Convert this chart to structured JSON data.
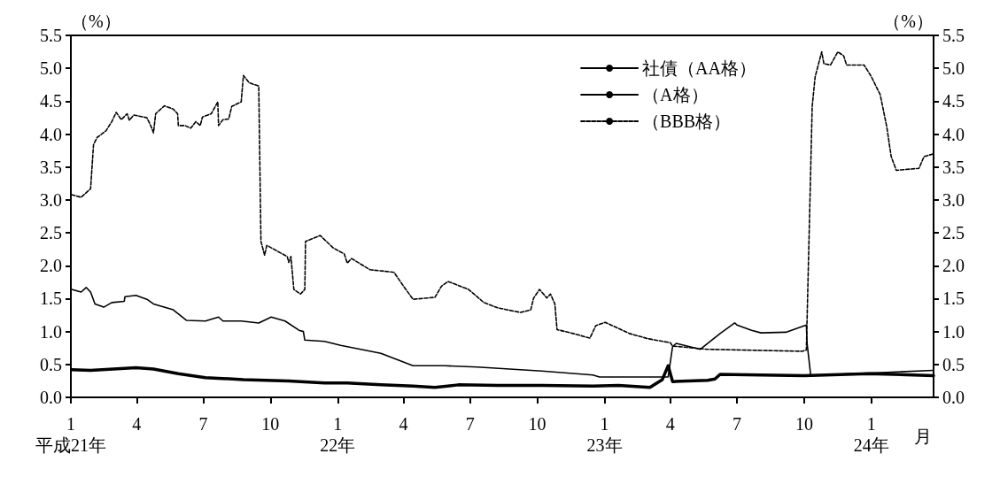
{
  "chart_data": {
    "type": "line",
    "ylabel": "（%）",
    "y2label": "（%）",
    "xlabel": "月",
    "xlim": [
      "2009-01-01",
      "2012-03-26"
    ],
    "xticks": [
      {
        "value": "2009-01-01",
        "label": "1\n平成21年"
      },
      {
        "value": "2009-04-01",
        "label": "4"
      },
      {
        "value": "2009-07-01",
        "label": "7"
      },
      {
        "value": "2009-10-01",
        "label": "10"
      },
      {
        "value": "2010-01-01",
        "label": "1\n22年"
      },
      {
        "value": "2010-04-01",
        "label": "4"
      },
      {
        "value": "2010-07-01",
        "label": "7"
      },
      {
        "value": "2010-10-01",
        "label": "10"
      },
      {
        "value": "2011-01-01",
        "label": "1\n23年"
      },
      {
        "value": "2011-04-01",
        "label": "4"
      },
      {
        "value": "2011-07-01",
        "label": "7"
      },
      {
        "value": "2011-10-01",
        "label": "10"
      },
      {
        "value": "2012-01-01",
        "label": "1\n24年"
      }
    ],
    "ylim": [
      0,
      5.5
    ],
    "yticks": [
      {
        "value": 0,
        "label": "0.0"
      },
      {
        "value": 0.5,
        "label": "0.5"
      },
      {
        "value": 1,
        "label": "1.0"
      },
      {
        "value": 1.5,
        "label": "1.5"
      },
      {
        "value": 2,
        "label": "2.0"
      },
      {
        "value": 2.5,
        "label": "2.5"
      },
      {
        "value": 3,
        "label": "3.0"
      },
      {
        "value": 3.5,
        "label": "3.5"
      },
      {
        "value": 4,
        "label": "4.0"
      },
      {
        "value": 4.5,
        "label": "4.5"
      },
      {
        "value": 5,
        "label": "5.0"
      },
      {
        "value": 5.5,
        "label": "5.5"
      }
    ],
    "y2lim": [
      0,
      5.5
    ],
    "y2ticks": [
      {
        "value": 0,
        "label": "0.0"
      },
      {
        "value": 0.5,
        "label": "0.5"
      },
      {
        "value": 1,
        "label": "1.0"
      },
      {
        "value": 1.5,
        "label": "1.5"
      },
      {
        "value": 2,
        "label": "2.0"
      },
      {
        "value": 2.5,
        "label": "2.5"
      },
      {
        "value": 3,
        "label": "3.0"
      },
      {
        "value": 3.5,
        "label": "3.5"
      },
      {
        "value": 4,
        "label": "4.0"
      },
      {
        "value": 4.5,
        "label": "4.5"
      },
      {
        "value": 5,
        "label": "5.0"
      },
      {
        "value": 5.5,
        "label": "5.5"
      }
    ],
    "grid": false,
    "legend": "top right",
    "marker": "none",
    "series": [
      {
        "name": "社債（AA格）",
        "color": "#000000",
        "line_style": "solid",
        "x": [
          "2009-01-02",
          "2009-01-28",
          "2009-03-31",
          "2009-04-24",
          "2009-05-28",
          "2009-07-04",
          "2009-08-25",
          "2009-10-26",
          "2009-12-14",
          "2010-01-14",
          "2010-03-01",
          "2010-04-14",
          "2010-05-14",
          "2010-06-15",
          "2010-08-08",
          "2010-10-07",
          "2010-12-16",
          "2011-01-20",
          "2011-03-04",
          "2011-03-21",
          "2011-03-29",
          "2011-04-04",
          "2011-05-22",
          "2011-06-01",
          "2011-06-08",
          "2011-08-03",
          "2011-10-01",
          "2011-12-28",
          "2012-03-26"
        ],
        "values": [
          0.42,
          0.41,
          0.45,
          0.43,
          0.36,
          0.3,
          0.27,
          0.25,
          0.22,
          0.22,
          0.19,
          0.17,
          0.15,
          0.19,
          0.18,
          0.18,
          0.17,
          0.18,
          0.15,
          0.27,
          0.48,
          0.24,
          0.26,
          0.28,
          0.35,
          0.34,
          0.33,
          0.36,
          0.33
        ]
      },
      {
        "name": "（A格）",
        "color": "#000000",
        "line_style": "solid",
        "x": [
          "2009-01-02",
          "2009-01-15",
          "2009-01-22",
          "2009-01-28",
          "2009-02-03",
          "2009-02-15",
          "2009-02-26",
          "2009-03-15",
          "2009-03-16",
          "2009-03-31",
          "2009-04-15",
          "2009-04-24",
          "2009-05-21",
          "2009-06-08",
          "2009-07-04",
          "2009-07-22",
          "2009-07-28",
          "2009-08-22",
          "2009-09-15",
          "2009-10-02",
          "2009-10-21",
          "2009-11-09",
          "2009-11-15",
          "2009-11-17",
          "2009-12-14",
          "2010-01-05",
          "2010-03-01",
          "2010-04-14",
          "2010-05-28",
          "2010-07-11",
          "2010-10-07",
          "2010-12-16",
          "2010-12-25",
          "2011-03-29",
          "2011-04-04",
          "2011-04-09",
          "2011-05-12",
          "2011-06-08",
          "2011-06-28",
          "2011-07-01",
          "2011-07-21",
          "2011-08-03",
          "2011-09-06",
          "2011-10-04",
          "2011-10-05",
          "2011-10-10",
          "2011-12-04",
          "2012-01-22",
          "2012-03-26"
        ],
        "values": [
          1.64,
          1.6,
          1.67,
          1.6,
          1.42,
          1.37,
          1.44,
          1.46,
          1.53,
          1.55,
          1.49,
          1.42,
          1.33,
          1.17,
          1.16,
          1.22,
          1.16,
          1.16,
          1.13,
          1.22,
          1.16,
          1.02,
          1.0,
          0.87,
          0.85,
          0.79,
          0.67,
          0.48,
          0.48,
          0.46,
          0.4,
          0.34,
          0.31,
          0.31,
          0.77,
          0.82,
          0.73,
          0.97,
          1.13,
          1.1,
          1.02,
          0.98,
          0.99,
          1.1,
          0.82,
          0.33,
          0.36,
          0.38,
          0.41
        ]
      },
      {
        "name": "（BBB格）",
        "color": "#000000",
        "line_style": "dashed",
        "x": [
          "2009-01-02",
          "2009-01-15",
          "2009-01-28",
          "2009-02-01",
          "2009-02-06",
          "2009-02-18",
          "2009-02-26",
          "2009-03-04",
          "2009-03-11",
          "2009-03-19",
          "2009-03-22",
          "2009-03-28",
          "2009-04-15",
          "2009-04-21",
          "2009-04-24",
          "2009-04-27",
          "2009-05-09",
          "2009-05-21",
          "2009-05-27",
          "2009-05-28",
          "2009-06-06",
          "2009-06-14",
          "2009-06-21",
          "2009-06-27",
          "2009-06-30",
          "2009-07-12",
          "2009-07-21",
          "2009-07-22",
          "2009-07-28",
          "2009-08-05",
          "2009-08-09",
          "2009-08-22",
          "2009-08-25",
          "2009-09-02",
          "2009-09-15",
          "2009-09-18",
          "2009-09-23",
          "2009-09-26",
          "2009-10-09",
          "2009-10-24",
          "2009-10-26",
          "2009-10-29",
          "2009-11-02",
          "2009-11-11",
          "2009-11-17",
          "2009-11-18",
          "2009-11-27",
          "2009-12-08",
          "2009-12-26",
          "2010-01-10",
          "2010-01-14",
          "2010-01-20",
          "2010-02-14",
          "2010-03-19",
          "2010-04-01",
          "2010-04-14",
          "2010-05-14",
          "2010-05-23",
          "2010-06-01",
          "2010-06-13",
          "2010-06-29",
          "2010-07-20",
          "2010-08-08",
          "2010-09-08",
          "2010-09-22",
          "2010-09-26",
          "2010-10-04",
          "2010-10-14",
          "2010-10-19",
          "2010-10-25",
          "2010-10-28",
          "2010-11-19",
          "2010-12-12",
          "2010-12-20",
          "2011-01-02",
          "2011-02-04",
          "2011-03-02",
          "2011-04-01",
          "2011-04-04",
          "2011-05-22",
          "2011-09-28",
          "2011-10-04",
          "2011-10-12",
          "2011-10-16",
          "2011-10-25",
          "2011-10-28",
          "2011-11-06",
          "2011-11-16",
          "2011-11-24",
          "2011-11-28",
          "2011-12-22",
          "2012-01-01",
          "2012-01-13",
          "2012-01-22",
          "2012-01-28",
          "2012-02-04",
          "2012-03-06",
          "2012-03-13",
          "2012-03-26"
        ],
        "values": [
          3.08,
          3.04,
          3.17,
          3.84,
          3.95,
          4.05,
          4.19,
          4.33,
          4.22,
          4.31,
          4.21,
          4.29,
          4.25,
          4.11,
          4.02,
          4.31,
          4.43,
          4.38,
          4.31,
          4.13,
          4.13,
          4.09,
          4.19,
          4.13,
          4.26,
          4.31,
          4.49,
          4.13,
          4.22,
          4.23,
          4.42,
          4.49,
          4.89,
          4.78,
          4.73,
          2.37,
          2.16,
          2.31,
          2.23,
          2.14,
          2.05,
          2.14,
          1.64,
          1.57,
          1.64,
          2.37,
          2.41,
          2.46,
          2.27,
          2.18,
          2.04,
          2.11,
          1.94,
          1.9,
          1.69,
          1.49,
          1.52,
          1.69,
          1.76,
          1.71,
          1.64,
          1.44,
          1.36,
          1.29,
          1.33,
          1.51,
          1.64,
          1.51,
          1.57,
          1.42,
          1.03,
          0.97,
          0.9,
          1.09,
          1.14,
          0.97,
          0.89,
          0.83,
          0.78,
          0.73,
          0.7,
          0.72,
          4.42,
          4.87,
          5.25,
          5.07,
          5.05,
          5.25,
          5.19,
          5.05,
          5.05,
          4.87,
          4.6,
          4.11,
          3.66,
          3.45,
          3.48,
          3.66,
          3.7
        ]
      }
    ]
  }
}
